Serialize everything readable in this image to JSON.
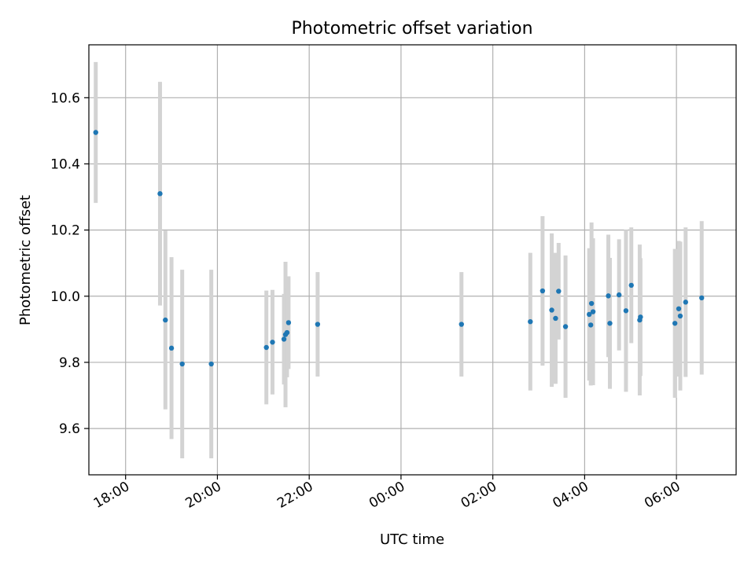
{
  "chart_data": {
    "type": "scatter",
    "title": "Photometric offset variation",
    "xlabel": "UTC time",
    "ylabel": "Photometric offset",
    "x_axis_type": "time",
    "xlim": [
      "17:12",
      "07:18"
    ],
    "ylim": [
      9.46,
      10.76
    ],
    "grid": true,
    "legend": "none",
    "x_ticks": [
      "18:00",
      "20:00",
      "22:00",
      "00:00",
      "02:00",
      "04:00",
      "06:00"
    ],
    "y_ticks": [
      "9.6",
      "9.8",
      "10.0",
      "10.2",
      "10.4",
      "10.6"
    ],
    "marker_color": "#1f77b4",
    "errorbar_color": "#d3d3d3",
    "points": [
      {
        "x": "17:21",
        "y": 10.495,
        "err": 0.213
      },
      {
        "x": "18:45",
        "y": 10.31,
        "err": 0.338
      },
      {
        "x": "18:52",
        "y": 9.928,
        "err": 0.27
      },
      {
        "x": "19:00",
        "y": 9.843,
        "err": 0.275
      },
      {
        "x": "19:14",
        "y": 9.795,
        "err": 0.285
      },
      {
        "x": "19:52",
        "y": 9.795,
        "err": 0.285
      },
      {
        "x": "21:04",
        "y": 9.845,
        "err": 0.172
      },
      {
        "x": "21:12",
        "y": 9.861,
        "err": 0.158
      },
      {
        "x": "21:27",
        "y": 9.87,
        "err": 0.137
      },
      {
        "x": "21:29",
        "y": 9.884,
        "err": 0.22
      },
      {
        "x": "21:31",
        "y": 9.89,
        "err": 0.135
      },
      {
        "x": "21:33",
        "y": 9.92,
        "err": 0.14
      },
      {
        "x": "22:11",
        "y": 9.915,
        "err": 0.158
      },
      {
        "x": "01:19",
        "y": 9.915,
        "err": 0.158
      },
      {
        "x": "02:49",
        "y": 9.923,
        "err": 0.208
      },
      {
        "x": "03:05",
        "y": 10.016,
        "err": 0.226
      },
      {
        "x": "03:17",
        "y": 9.958,
        "err": 0.232
      },
      {
        "x": "03:22",
        "y": 9.933,
        "err": 0.198
      },
      {
        "x": "03:26",
        "y": 10.015,
        "err": 0.146
      },
      {
        "x": "03:35",
        "y": 9.908,
        "err": 0.215
      },
      {
        "x": "04:06",
        "y": 9.945,
        "err": 0.2
      },
      {
        "x": "04:08",
        "y": 9.913,
        "err": 0.183
      },
      {
        "x": "04:09",
        "y": 9.978,
        "err": 0.245
      },
      {
        "x": "04:11",
        "y": 9.953,
        "err": 0.222
      },
      {
        "x": "04:31",
        "y": 10.001,
        "err": 0.185
      },
      {
        "x": "04:33",
        "y": 9.918,
        "err": 0.198
      },
      {
        "x": "04:45",
        "y": 10.004,
        "err": 0.168
      },
      {
        "x": "04:54",
        "y": 9.956,
        "err": 0.245
      },
      {
        "x": "05:01",
        "y": 10.033,
        "err": 0.175
      },
      {
        "x": "05:12",
        "y": 9.928,
        "err": 0.228
      },
      {
        "x": "05:13",
        "y": 9.937,
        "err": 0.178
      },
      {
        "x": "05:58",
        "y": 9.918,
        "err": 0.225
      },
      {
        "x": "06:03",
        "y": 9.962,
        "err": 0.205
      },
      {
        "x": "06:05",
        "y": 9.94,
        "err": 0.225
      },
      {
        "x": "06:12",
        "y": 9.982,
        "err": 0.226
      },
      {
        "x": "06:33",
        "y": 9.995,
        "err": 0.232
      }
    ]
  }
}
